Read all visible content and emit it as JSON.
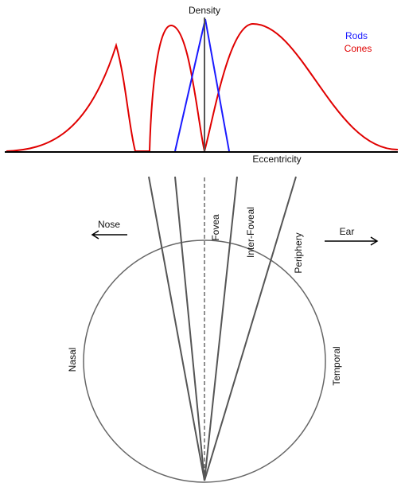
{
  "labels": {
    "density": "Density",
    "rods": "Rods",
    "cones": "Cones",
    "eccentricity": "Eccentricity",
    "nose": "Nose",
    "ear": "Ear",
    "fovea": "Fovea",
    "inter_foveal": "Inter-Foveal",
    "periphery": "Periphery",
    "nasal": "Nasal",
    "temporal": "Temporal"
  }
}
